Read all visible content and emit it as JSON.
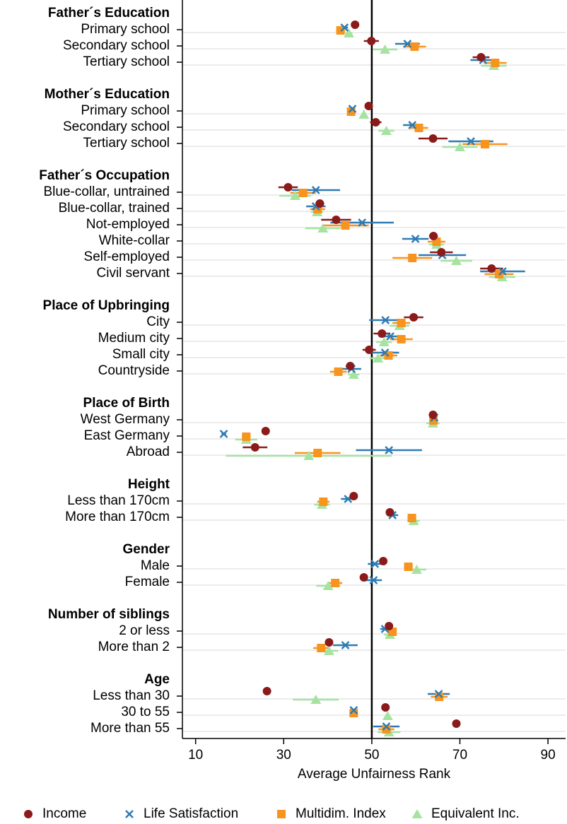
{
  "chart_data": {
    "type": "dot-errorbar",
    "x_label": "Average Unfairness Rank",
    "xlim": [
      7,
      94
    ],
    "xticks": [
      10,
      30,
      50,
      70,
      90
    ],
    "reference_line": 50,
    "grid": true,
    "legend": "bottom",
    "groups": [
      {
        "title": "Father´s Education",
        "categories": [
          "Primary school",
          "Secondary school",
          "Tertiary school"
        ]
      },
      {
        "title": "Mother´s Education",
        "categories": [
          "Primary school",
          "Secondary school",
          "Tertiary school"
        ]
      },
      {
        "title": "Father´s Occupation",
        "categories": [
          "Blue-collar, untrained",
          "Blue-collar, trained",
          "Not-employed",
          "White-collar",
          "Self-employed",
          "Civil servant"
        ]
      },
      {
        "title": "Place of Upbringing",
        "categories": [
          "City",
          "Medium city",
          "Small city",
          "Countryside"
        ]
      },
      {
        "title": "Place of Birth",
        "categories": [
          "West Germany",
          "East Germany",
          "Abroad"
        ]
      },
      {
        "title": "Height",
        "categories": [
          "Less than 170cm",
          "More than 170cm"
        ]
      },
      {
        "title": "Gender",
        "categories": [
          "Male",
          "Female"
        ]
      },
      {
        "title": "Number of siblings",
        "categories": [
          "2 or less",
          "More than 2"
        ]
      },
      {
        "title": "Age",
        "categories": [
          "Less than 30",
          "30 to 55",
          "More than 55"
        ]
      }
    ],
    "series": [
      {
        "name": "Income",
        "marker": "circle",
        "color": "#8b1a1a",
        "values": [
          46.2,
          49.9,
          74.8,
          49.3,
          50.9,
          63.9,
          31.0,
          38.2,
          41.9,
          64.0,
          65.8,
          77.2,
          59.5,
          52.3,
          49.4,
          45.1,
          63.9,
          25.9,
          23.5,
          45.9,
          54.1,
          52.6,
          48.2,
          53.9,
          40.3,
          26.2,
          53.1,
          69.2
        ],
        "errors": [
          0.5,
          1.7,
          1.9,
          0.5,
          1.3,
          3.3,
          2.2,
          1.0,
          3.4,
          1.0,
          2.6,
          2.6,
          2.2,
          1.9,
          1.5,
          1.0,
          0.3,
          0.8,
          2.8,
          0.5,
          0.3,
          0.3,
          0.5,
          0.3,
          0.8,
          0.5,
          0.3,
          0.8
        ]
      },
      {
        "name": "Life Satisfaction",
        "marker": "cross",
        "color": "#2e7bb4",
        "values": [
          43.8,
          58.1,
          75.3,
          45.6,
          59.2,
          72.5,
          37.3,
          37.3,
          47.8,
          59.9,
          66.0,
          79.7,
          53.1,
          54.2,
          53.0,
          45.4,
          64.2,
          16.4,
          53.9,
          44.6,
          54.7,
          50.7,
          50.4,
          53.0,
          44.0,
          65.2,
          45.9,
          53.3
        ],
        "errors": [
          0.8,
          2.8,
          2.9,
          0.5,
          2.1,
          5.1,
          5.5,
          2.2,
          7.2,
          3.0,
          5.4,
          5.1,
          3.7,
          2.6,
          3.2,
          2.2,
          0.5,
          0.5,
          7.5,
          1.6,
          1.3,
          1.6,
          1.9,
          1.1,
          2.8,
          2.5,
          0.3,
          3.0
        ]
      },
      {
        "name": "Multidim. Index",
        "marker": "square",
        "color": "#f7941d",
        "values": [
          42.9,
          59.7,
          78.0,
          45.3,
          60.7,
          75.7,
          34.4,
          37.7,
          44.0,
          64.7,
          59.2,
          78.9,
          56.7,
          56.7,
          53.8,
          42.4,
          64.0,
          21.5,
          37.7,
          39.0,
          59.1,
          58.3,
          41.7,
          54.7,
          38.5,
          65.3,
          45.9,
          53.3
        ],
        "errors": [
          1.0,
          2.6,
          2.6,
          0.5,
          2.1,
          5.1,
          2.9,
          1.7,
          5.3,
          2.0,
          4.5,
          3.3,
          2.0,
          2.6,
          2.0,
          1.9,
          0.5,
          1.0,
          5.2,
          1.4,
          1.0,
          1.0,
          1.6,
          0.5,
          1.8,
          1.9,
          0.3,
          1.8
        ]
      },
      {
        "name": "Equivalent Inc.",
        "marker": "triangle",
        "color": "#a6e3a1",
        "values": [
          44.8,
          53.0,
          77.7,
          48.2,
          53.3,
          70.0,
          32.6,
          37.6,
          38.9,
          64.7,
          69.2,
          79.6,
          56.3,
          52.8,
          51.4,
          45.9,
          63.9,
          21.5,
          35.7,
          38.7,
          59.5,
          60.2,
          40.1,
          54.1,
          40.3,
          37.3,
          53.6,
          53.9
        ],
        "errors": [
          0.8,
          2.8,
          2.9,
          0.5,
          1.8,
          4.0,
          3.6,
          1.4,
          4.0,
          1.7,
          3.6,
          3.0,
          2.2,
          1.8,
          1.9,
          1.3,
          1.5,
          2.5,
          18.8,
          1.8,
          1.4,
          2.2,
          2.7,
          1.4,
          2.1,
          5.2,
          0.5,
          2.6
        ]
      }
    ]
  }
}
